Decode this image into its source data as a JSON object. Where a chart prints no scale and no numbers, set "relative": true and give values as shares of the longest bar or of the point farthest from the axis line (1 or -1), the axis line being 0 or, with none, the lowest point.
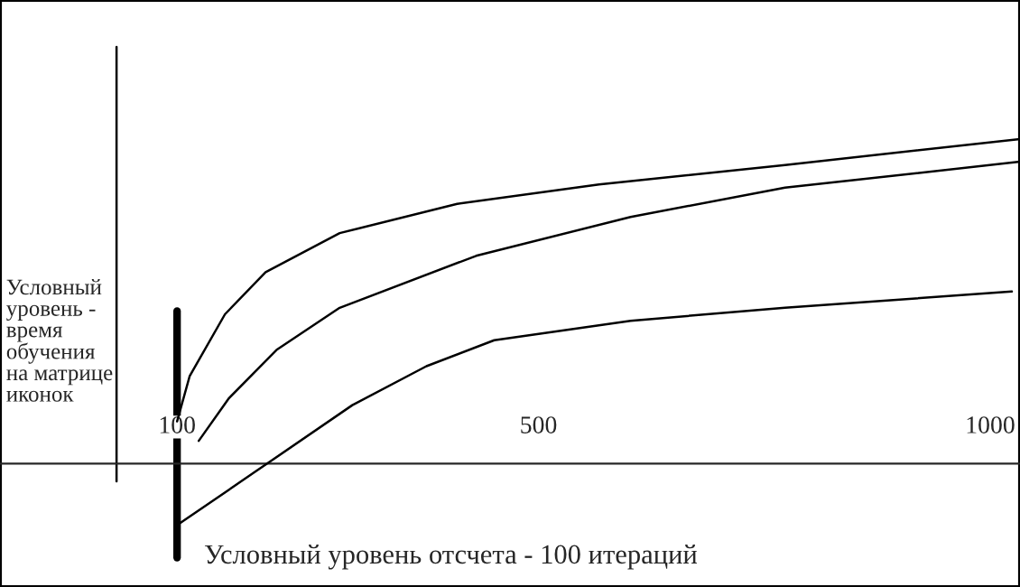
{
  "chart_data": {
    "type": "line",
    "relative": true,
    "ylabel": "Условный уровень - время обучения на матрице иконок",
    "annotations": [
      "Условный уровень отсчета - 100 итераций"
    ],
    "xlim": [
      -96,
      1033
    ],
    "xticks": [
      100,
      500,
      1000
    ],
    "ref_lines": [
      {
        "axis": "x",
        "value": 100,
        "color": "#000000"
      },
      {
        "axis": "x",
        "value": 33,
        "color": "#000000"
      }
    ],
    "series": [
      {
        "color": "#000000",
        "x": [
          100,
          114,
          153,
          198,
          280,
          410,
          567,
          773,
          1033
        ],
        "values": [
          0.13,
          0.27,
          0.46,
          0.59,
          0.71,
          0.8,
          0.86,
          0.92,
          1.0
        ]
      },
      {
        "color": "#000000",
        "x": [
          124,
          157,
          210,
          280,
          431,
          602,
          773,
          1033
        ],
        "values": [
          0.07,
          0.2,
          0.35,
          0.48,
          0.64,
          0.76,
          0.85,
          0.93
        ]
      },
      {
        "color": "#000000",
        "x": [
          100,
          184,
          294,
          376,
          451,
          602,
          773,
          1024
        ],
        "values": [
          -0.19,
          -0.03,
          0.18,
          0.3,
          0.38,
          0.44,
          0.48,
          0.53
        ]
      }
    ],
    "grid": false,
    "legend": false
  }
}
